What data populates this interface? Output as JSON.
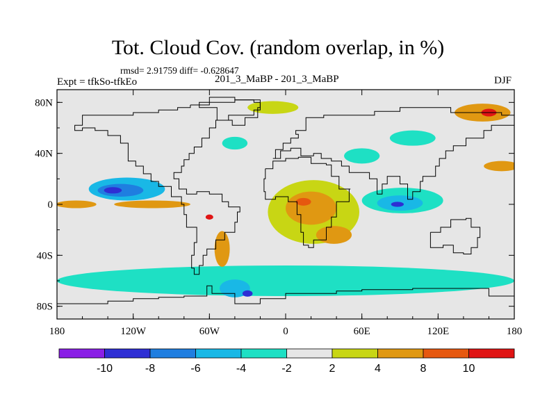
{
  "chart_data": {
    "type": "heatmap",
    "title": "Tot. Cloud Cov. (random overlap, in %)",
    "stats_text": "rmsd= 2.91759 diff= -0.628647",
    "left_label": "Expt = tfkSo-tfkEo",
    "center_label": "201_3_MaBP - 201_3_MaBP",
    "right_label": "DJF",
    "x_ticks": [
      {
        "value": -180,
        "label": "180"
      },
      {
        "value": -120,
        "label": "120W"
      },
      {
        "value": -60,
        "label": "60W"
      },
      {
        "value": 0,
        "label": "0"
      },
      {
        "value": 60,
        "label": "60E"
      },
      {
        "value": 120,
        "label": "120E"
      },
      {
        "value": 180,
        "label": "180"
      }
    ],
    "y_ticks": [
      {
        "value": 80,
        "label": "80N"
      },
      {
        "value": 40,
        "label": "40N"
      },
      {
        "value": 0,
        "label": "0"
      },
      {
        "value": -40,
        "label": "40S"
      },
      {
        "value": -80,
        "label": "80S"
      }
    ],
    "xlim": [
      -180,
      180
    ],
    "ylim": [
      -90,
      90
    ],
    "colorbar": {
      "bins": [
        {
          "range": "< -10",
          "color": "#8a1ee6"
        },
        {
          "range": "-10 to -8",
          "color": "#2e2ed4"
        },
        {
          "range": "-8 to -6",
          "color": "#1f7ee0"
        },
        {
          "range": "-6 to -4",
          "color": "#19b8e6"
        },
        {
          "range": "-4 to -2",
          "color": "#1ee0c4"
        },
        {
          "range": "-2 to 2",
          "color": "#e6e6e6"
        },
        {
          "range": "2 to 4",
          "color": "#c8d614"
        },
        {
          "range": "4 to 8",
          "color": "#e09812"
        },
        {
          "range": "8 to 10",
          "color": "#e6580f"
        },
        {
          "range": "> 10",
          "color": "#e01414"
        }
      ],
      "labels": [
        "-10",
        "-8",
        "-6",
        "-4",
        "-2",
        "2",
        "4",
        "8",
        "10"
      ]
    },
    "regions": [
      {
        "name": "tropical-west-pacific-wet-band",
        "lon": -165,
        "lat": 0,
        "rlon": 16,
        "rlat": 3,
        "value": 5
      },
      {
        "name": "east-pacific-itcz-wet-band",
        "lon": -105,
        "lat": 0,
        "rlon": 30,
        "rlat": 3,
        "value": 5
      },
      {
        "name": "east-pacific-itcz-wet-core",
        "lon": -110,
        "lat": 1,
        "rlon": 14,
        "rlat": 1.5,
        "value": 6
      },
      {
        "name": "north-pacific-dry-zone",
        "lon": -125,
        "lat": 12,
        "rlon": 30,
        "rlat": 9,
        "value": -5
      },
      {
        "name": "north-pacific-dry-core",
        "lon": -130,
        "lat": 11,
        "rlon": 18,
        "rlat": 5,
        "value": -7
      },
      {
        "name": "north-pacific-dry-center",
        "lon": -136,
        "lat": 11,
        "rlon": 7,
        "rlat": 2.5,
        "value": -9
      },
      {
        "name": "central-africa-wet-zone",
        "lon": 22,
        "lat": -6,
        "rlon": 36,
        "rlat": 25,
        "value": 3
      },
      {
        "name": "central-africa-wet-core",
        "lon": 20,
        "lat": -3,
        "rlon": 20,
        "rlat": 13,
        "value": 5
      },
      {
        "name": "central-africa-wet-max",
        "lon": 14,
        "lat": 2,
        "rlon": 6,
        "rlat": 3,
        "value": 9
      },
      {
        "name": "south-atlantic-convergence-wet",
        "lon": 38,
        "lat": -24,
        "rlon": 14,
        "rlat": 7,
        "value": 5
      },
      {
        "name": "indian-ocean-dry-zone",
        "lon": 92,
        "lat": 3,
        "rlon": 32,
        "rlat": 10,
        "value": -4
      },
      {
        "name": "indian-ocean-dry-core",
        "lon": 90,
        "lat": 1,
        "rlon": 18,
        "rlat": 6,
        "value": -6
      },
      {
        "name": "indian-ocean-dry-center",
        "lon": 88,
        "lat": 0,
        "rlon": 5,
        "rlat": 2,
        "value": -9
      },
      {
        "name": "southern-ocean-dry-belt",
        "lon": 0,
        "lat": -60,
        "rlon": 180,
        "rlat": 12,
        "value": -3
      },
      {
        "name": "drake-passage-dry-core",
        "lon": -40,
        "lat": -66,
        "rlon": 12,
        "rlat": 7,
        "value": -6
      },
      {
        "name": "drake-passage-dry-center",
        "lon": -30,
        "lat": -70,
        "rlon": 4,
        "rlat": 2.5,
        "value": -9
      },
      {
        "name": "andes-wet-strip",
        "lon": -50,
        "lat": -35,
        "rlon": 6,
        "rlat": 14,
        "value": 5
      },
      {
        "name": "andes-wet-max",
        "lon": -60,
        "lat": -10,
        "rlon": 3,
        "rlat": 2,
        "value": 11
      },
      {
        "name": "arctic-north-pacific-wet",
        "lon": 155,
        "lat": 72,
        "rlon": 22,
        "rlat": 7,
        "value": 5
      },
      {
        "name": "arctic-north-pacific-wet-max",
        "lon": 160,
        "lat": 72,
        "rlon": 6,
        "rlat": 3,
        "value": 11
      },
      {
        "name": "north-atlantic-arctic-wet",
        "lon": -10,
        "lat": 76,
        "rlon": 20,
        "rlat": 5,
        "value": 3
      },
      {
        "name": "north-atlantic-dry-patch",
        "lon": 60,
        "lat": 38,
        "rlon": 14,
        "rlat": 6,
        "value": -3
      },
      {
        "name": "siberia-dry-patch",
        "lon": 100,
        "lat": 52,
        "rlon": 18,
        "rlat": 6,
        "value": -3
      },
      {
        "name": "north-pacific-midlat-wet",
        "lon": 170,
        "lat": 30,
        "rlon": 14,
        "rlat": 4,
        "value": 4
      },
      {
        "name": "gulf-stream-dry-patch",
        "lon": -40,
        "lat": 48,
        "rlon": 10,
        "rlat": 5,
        "value": -3
      }
    ],
    "grid": false
  }
}
